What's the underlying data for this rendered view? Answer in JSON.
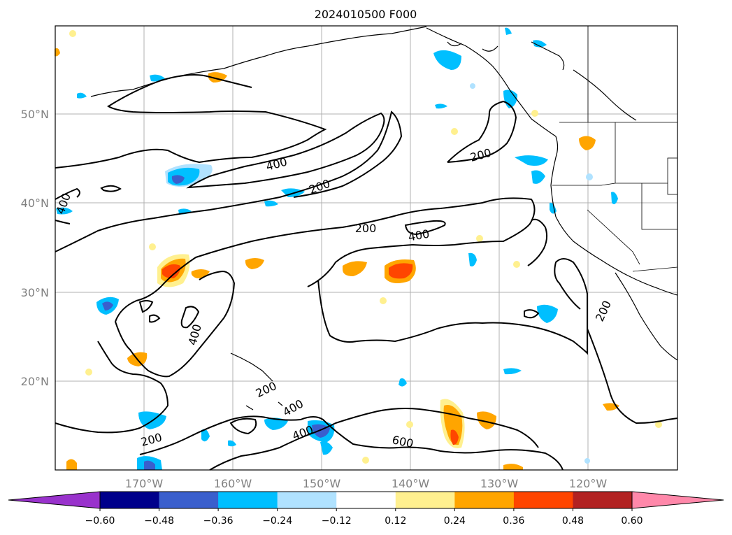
{
  "title": "2024010500 F000",
  "map": {
    "lat_labels": [
      "50°N",
      "40°N",
      "30°N",
      "20°N"
    ],
    "lon_labels": [
      "170°W",
      "160°W",
      "150°W",
      "140°W",
      "130°W",
      "120°W"
    ],
    "contour_labels": [
      "400",
      "400",
      "200",
      "200",
      "200",
      "400",
      "200",
      "400",
      "200",
      "400",
      "400",
      "200",
      "600"
    ]
  },
  "colorbar": {
    "tick_labels": [
      "−0.60",
      "−0.48",
      "−0.36",
      "−0.24",
      "−0.12",
      "0.12",
      "0.24",
      "0.36",
      "0.48",
      "0.60"
    ],
    "colors": [
      "#9932cc",
      "#00008b",
      "#3a5fcd",
      "#00bfff",
      "#b0e2ff",
      "#ffffff",
      "#fff08f",
      "#ffa500",
      "#ff4500",
      "#b22222",
      "#ff88aa"
    ]
  }
}
